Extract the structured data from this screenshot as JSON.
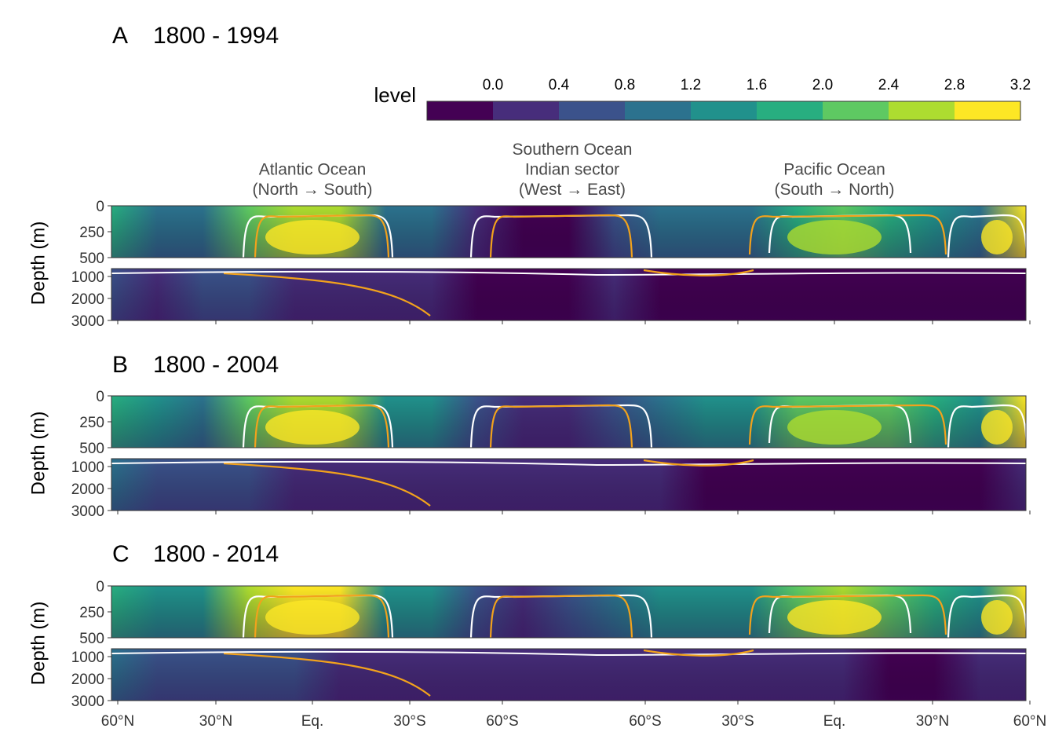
{
  "chart_data": {
    "type": "heatmap",
    "legend": {
      "title": "level",
      "breaks": [
        "0.0",
        "0.4",
        "0.8",
        "1.2",
        "1.6",
        "2.0",
        "2.4",
        "2.8",
        "3.2"
      ],
      "colors": [
        "#440154",
        "#472d7b",
        "#3b528b",
        "#2c728e",
        "#21918c",
        "#28ae80",
        "#5ec962",
        "#addc30",
        "#fde725"
      ],
      "placement": "top"
    },
    "regions": [
      {
        "lines": [
          "Atlantic Ocean",
          "(North → South)"
        ]
      },
      {
        "lines": [
          "Southern Ocean",
          "Indian sector",
          "(West → East)"
        ]
      },
      {
        "lines": [
          "Pacific Ocean",
          "(South → North)"
        ]
      }
    ],
    "x_ticks": [
      "60°N",
      "30°N",
      "Eq.",
      "30°S",
      "60°S",
      "60°S",
      "30°S",
      "Eq.",
      "30°N",
      "60°N"
    ],
    "y_ticks_upper": [
      "0",
      "250",
      "500"
    ],
    "y_ticks_lower": [
      "1000",
      "2000",
      "3000"
    ],
    "ylabel": "Depth (m)",
    "contour_colors": {
      "white": "#ffffff",
      "orange": "#f2a21c"
    },
    "panels": [
      {
        "letter": "A",
        "period": "1800 - 1994",
        "upper_levels": [
          2.0,
          1.4,
          1.3,
          2.6,
          3.0,
          2.9,
          1.5,
          1.4,
          0.7,
          0.2,
          0.3,
          1.1,
          1.3,
          1.4,
          1.5,
          2.3,
          2.6,
          2.4,
          1.9,
          1.4,
          3.3
        ],
        "lower_levels": [
          1.2,
          0.7,
          0.8,
          0.9,
          0.6,
          0.4,
          0.5,
          0.4,
          0.3,
          0.3,
          0.3,
          0.4,
          0.3,
          0.2,
          0.1,
          0.1,
          0.1,
          0.1,
          0.1,
          0.2,
          0.3
        ]
      },
      {
        "letter": "B",
        "period": "1800 - 2004",
        "upper_levels": [
          2.1,
          1.6,
          1.5,
          2.8,
          3.1,
          3.0,
          1.7,
          1.6,
          0.9,
          0.5,
          0.6,
          1.2,
          1.5,
          1.6,
          1.7,
          2.5,
          2.7,
          2.6,
          2.1,
          1.6,
          3.4
        ],
        "lower_levels": [
          1.3,
          0.8,
          0.9,
          1.0,
          0.7,
          0.5,
          0.6,
          0.5,
          0.4,
          0.4,
          0.4,
          0.5,
          0.4,
          0.3,
          0.3,
          0.3,
          0.3,
          0.2,
          0.1,
          0.3,
          0.4
        ]
      },
      {
        "letter": "C",
        "period": "1800 - 2014",
        "upper_levels": [
          2.3,
          1.8,
          1.7,
          3.1,
          3.4,
          3.2,
          1.9,
          1.8,
          1.1,
          0.7,
          0.8,
          1.5,
          1.7,
          1.8,
          1.9,
          2.7,
          3.0,
          2.8,
          2.3,
          1.8,
          3.5
        ],
        "lower_levels": [
          1.4,
          1.0,
          1.1,
          1.2,
          0.9,
          0.7,
          0.7,
          0.6,
          0.5,
          0.5,
          0.5,
          0.6,
          0.5,
          0.4,
          0.4,
          0.4,
          0.4,
          0.3,
          0.2,
          0.4,
          0.5
        ]
      }
    ]
  }
}
